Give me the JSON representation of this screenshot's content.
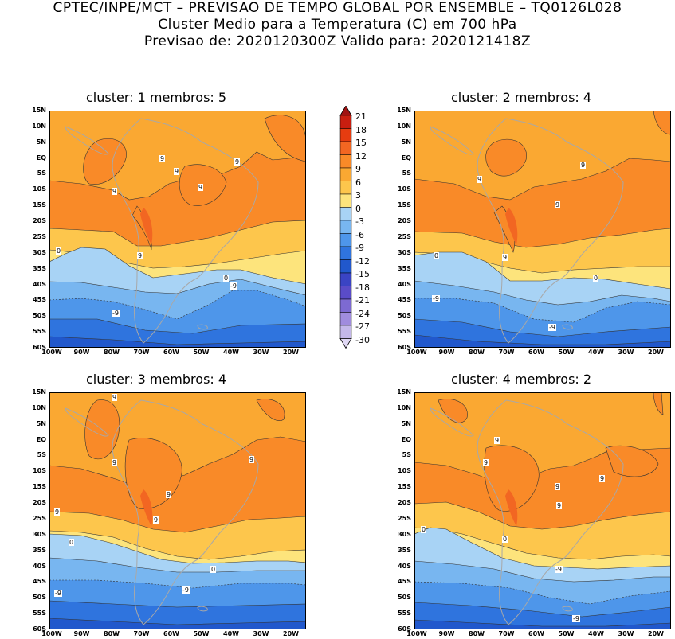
{
  "header": {
    "line1": "CPTEC/INPE/MCT – PREVISAO DE TEMPO GLOBAL POR ENSEMBLE – TQ0126L028",
    "line2": "Cluster Medio para a Temperatura (C) em 700 hPa",
    "line3": "Previsao de: 2020120300Z   Valido para: 2020121418Z"
  },
  "panels": [
    {
      "title": "cluster: 1   membros: 5"
    },
    {
      "title": "cluster: 2   membros: 4"
    },
    {
      "title": "cluster: 3   membros: 4"
    },
    {
      "title": "cluster: 4   membros: 2"
    }
  ],
  "lat_labels": [
    "15N",
    "10N",
    "5N",
    "EQ",
    "5S",
    "10S",
    "15S",
    "20S",
    "25S",
    "30S",
    "35S",
    "40S",
    "45S",
    "50S",
    "55S",
    "60S"
  ],
  "lon_labels": [
    "100W",
    "90W",
    "80W",
    "70W",
    "60W",
    "50W",
    "40W",
    "30W",
    "20W"
  ],
  "colorbar": {
    "labels": [
      "21",
      "18",
      "15",
      "12",
      "9",
      "6",
      "3",
      "0",
      "-3",
      "-6",
      "-9",
      "-12",
      "-15",
      "-18",
      "-21",
      "-24",
      "-27",
      "-30"
    ],
    "colors": [
      "#a11212",
      "#c81e10",
      "#e63c10",
      "#f26622",
      "#f98a28",
      "#faa832",
      "#fdc64c",
      "#fde47c",
      "#a8d3f5",
      "#78b6f0",
      "#4e96ea",
      "#2f74de",
      "#2158cc",
      "#3a44c4",
      "#5a4cc8",
      "#7d6ad2",
      "#a08cde",
      "#c4b8ea"
    ],
    "unit": "C"
  },
  "contour_labels": {
    "p1": [
      "9",
      "9",
      "9",
      "9",
      "9",
      "9",
      "0",
      "0",
      "-9",
      "-9"
    ],
    "p2": [
      "9",
      "9",
      "9",
      "9",
      "0",
      "0",
      "-9",
      "-9"
    ],
    "p3": [
      "9",
      "9",
      "9",
      "9",
      "9",
      "9",
      "0",
      "0",
      "-9",
      "-9"
    ],
    "p4": [
      "9",
      "9",
      "9",
      "9",
      "9",
      "0",
      "0",
      "-9",
      "-9"
    ]
  }
}
